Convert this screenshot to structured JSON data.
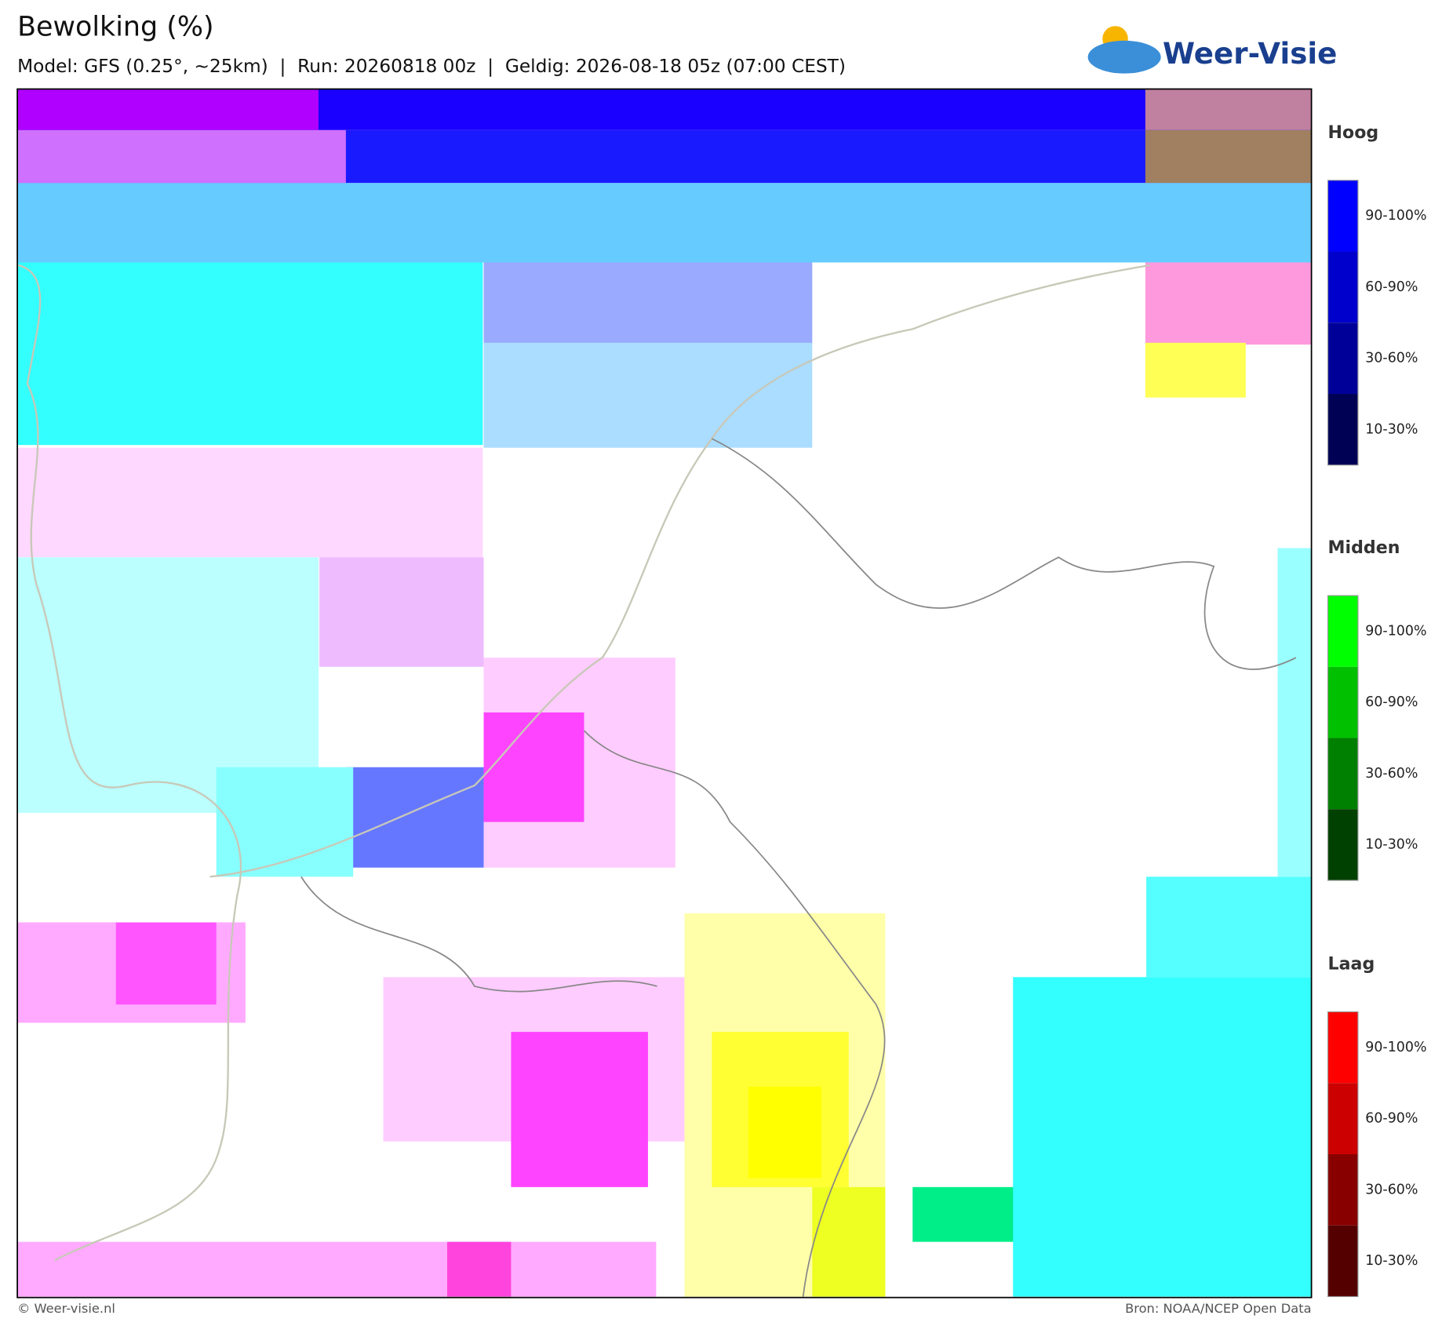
{
  "header": {
    "title": "Bewolking (%)",
    "subtitle": "Model: GFS (0.25°, ~25km)  |  Run: 20260818 00z  |  Geldig: 2026-08-18 05z (07:00 CEST)",
    "logo": "Weer-Visie"
  },
  "legend": [
    {
      "title": "Hoog",
      "labels": [
        "90-100%",
        "60-90%",
        "30-60%",
        "10-30%"
      ],
      "colors": [
        "#0000ff",
        "#0000cc",
        "#000099",
        "#000055"
      ]
    },
    {
      "title": "Midden",
      "labels": [
        "90-100%",
        "60-90%",
        "30-60%",
        "10-30%"
      ],
      "colors": [
        "#00ff00",
        "#00c000",
        "#008000",
        "#004000"
      ]
    },
    {
      "title": "Laag",
      "labels": [
        "90-100%",
        "60-90%",
        "30-60%",
        "10-30%"
      ],
      "colors": [
        "#ff0000",
        "#cc0000",
        "#880000",
        "#550000"
      ]
    }
  ],
  "footer": {
    "left": "© Weer-visie.nl",
    "right": "Bron: NOAA/NCEP Open Data"
  }
}
